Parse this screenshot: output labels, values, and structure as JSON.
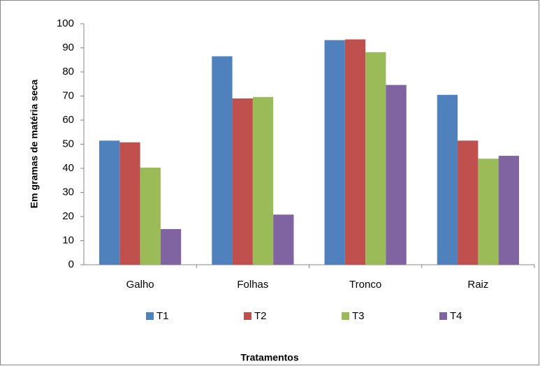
{
  "chart_data": {
    "type": "bar",
    "y_axis_label": "Em gramas de matéria seca",
    "x_axis_label": "Tratamentos",
    "categories": [
      "Galho",
      "Folhas",
      "Tronco",
      "Raiz"
    ],
    "series": [
      {
        "name": "T1",
        "color": "#4f81bd",
        "values": [
          51.5,
          86.5,
          93.2,
          70.5
        ]
      },
      {
        "name": "T2",
        "color": "#c0504d",
        "values": [
          50.8,
          69,
          93.5,
          51.5
        ]
      },
      {
        "name": "T3",
        "color": "#9bbb59",
        "values": [
          40.3,
          69.6,
          88.2,
          44
        ]
      },
      {
        "name": "T4",
        "color": "#8064a2",
        "values": [
          14.8,
          20.8,
          74.6,
          45.2
        ]
      }
    ],
    "ylim": [
      0,
      100
    ],
    "yticks": [
      0,
      10,
      20,
      30,
      40,
      50,
      60,
      70,
      80,
      90,
      100
    ],
    "grid": false,
    "legend": "bottom"
  }
}
